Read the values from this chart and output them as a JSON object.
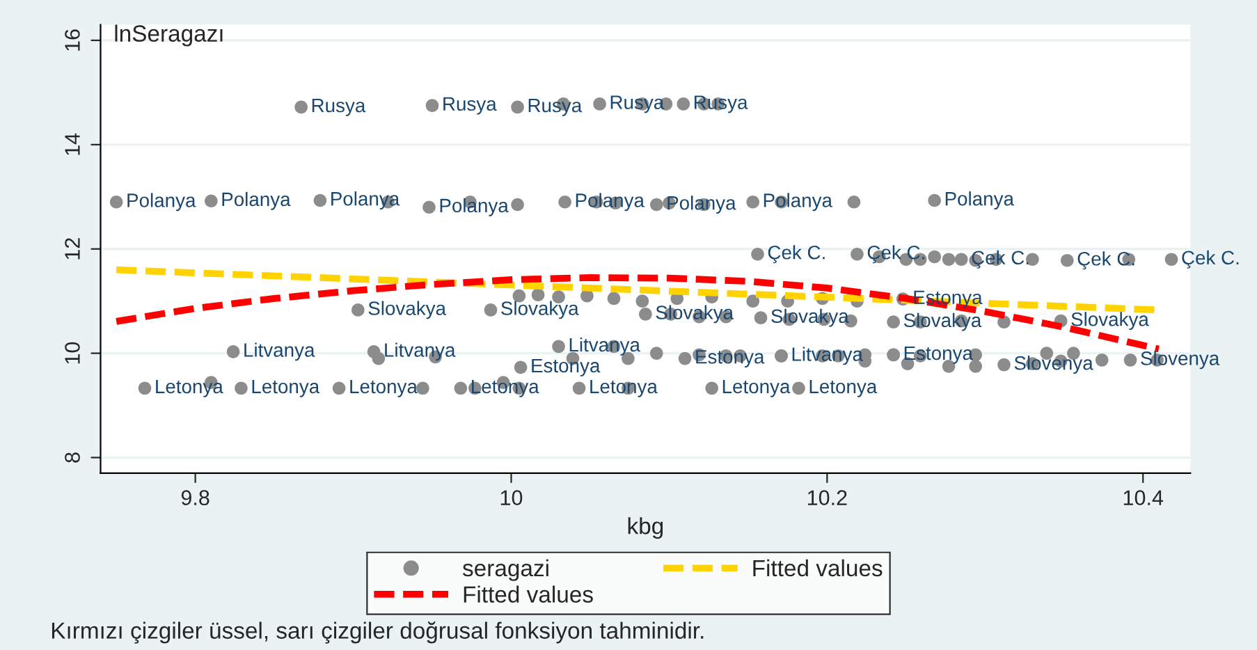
{
  "chart_data": {
    "type": "scatter",
    "ylabel": "lnSeragazı",
    "xlabel": "kbg",
    "xlim": [
      9.74,
      10.43
    ],
    "ylim": [
      7.7,
      16.3
    ],
    "xticks": [
      9.8,
      10,
      10.2,
      10.4
    ],
    "yticks": [
      8,
      10,
      12,
      14,
      16
    ],
    "grid": "y",
    "legend": "bottom",
    "marker": "circle",
    "annotations": [
      "Kırmızı çizgiler üssel, sarı çizgiler doğrusal fonksiyon tahminidir."
    ],
    "series": [
      {
        "name": "seragazi",
        "color": "#8c8c8c",
        "x": [
          9.867,
          9.95,
          10.004,
          10.033,
          10.056,
          10.083,
          10.098,
          10.109,
          10.122,
          10.131,
          9.75,
          9.81,
          9.879,
          9.922,
          9.948,
          9.974,
          10.004,
          10.034,
          10.054,
          10.066,
          10.092,
          10.1,
          10.122,
          10.153,
          10.171,
          10.217,
          10.268,
          10.156,
          10.219,
          10.233,
          10.25,
          10.259,
          10.268,
          10.277,
          10.285,
          10.294,
          10.307,
          10.33,
          10.352,
          10.391,
          10.418,
          10.005,
          10.017,
          10.03,
          10.048,
          10.065,
          10.083,
          10.105,
          10.127,
          10.153,
          10.175,
          10.197,
          10.219,
          10.248,
          9.903,
          9.987,
          10.085,
          10.101,
          10.119,
          10.136,
          10.158,
          10.176,
          10.198,
          10.215,
          10.242,
          10.259,
          10.285,
          10.312,
          10.348,
          9.824,
          9.913,
          9.916,
          9.952,
          10.03,
          10.065,
          10.092,
          10.119,
          10.145,
          10.171,
          10.197,
          10.224,
          10.242,
          10.259,
          10.006,
          10.039,
          10.074,
          10.11,
          10.136,
          10.171,
          10.207,
          10.242,
          10.294,
          10.339,
          10.356,
          10.224,
          10.251,
          10.277,
          10.294,
          10.312,
          10.33,
          10.348,
          10.374,
          10.392,
          10.409,
          9.768,
          9.81,
          9.829,
          9.891,
          9.944,
          9.968,
          9.977,
          9.995,
          10.005,
          10.043,
          10.074,
          10.127,
          10.182
        ],
        "values": [
          14.72,
          14.75,
          14.72,
          14.78,
          14.78,
          14.78,
          14.78,
          14.78,
          14.78,
          14.78,
          12.9,
          12.92,
          12.93,
          12.9,
          12.8,
          12.9,
          12.85,
          12.9,
          12.9,
          12.88,
          12.85,
          12.88,
          12.85,
          12.9,
          12.9,
          12.9,
          12.93,
          11.9,
          11.9,
          11.85,
          11.8,
          11.8,
          11.85,
          11.8,
          11.8,
          11.78,
          11.8,
          11.8,
          11.78,
          11.8,
          11.8,
          11.1,
          11.12,
          11.08,
          11.1,
          11.05,
          11.0,
          11.05,
          11.08,
          11.0,
          11.0,
          11.05,
          11.0,
          11.04,
          10.83,
          10.83,
          10.75,
          10.75,
          10.7,
          10.7,
          10.68,
          10.65,
          10.65,
          10.62,
          10.6,
          10.6,
          10.62,
          10.6,
          10.62,
          10.03,
          10.03,
          9.9,
          9.93,
          10.13,
          10.13,
          10.0,
          9.97,
          9.95,
          9.95,
          9.95,
          9.97,
          9.97,
          9.95,
          9.73,
          9.9,
          9.9,
          9.9,
          9.95,
          9.95,
          9.95,
          9.97,
          9.97,
          10.0,
          10.0,
          9.85,
          9.8,
          9.75,
          9.75,
          9.78,
          9.8,
          9.85,
          9.87,
          9.87,
          9.87,
          9.33,
          9.44,
          9.33,
          9.33,
          9.33,
          9.33,
          9.33,
          9.44,
          9.33,
          9.33,
          9.33,
          9.33,
          9.33
        ],
        "value_labels": [
          "Rusya",
          "Rusya",
          "Rusya",
          null,
          "Rusya",
          null,
          null,
          "Rusya",
          null,
          null,
          "Polanya",
          "Polanya",
          "Polanya",
          null,
          "Polanya",
          null,
          null,
          "Polanya",
          null,
          null,
          "Polanya",
          null,
          null,
          "Polanya",
          null,
          null,
          "Polanya",
          "Çek C.",
          "Çek C.",
          null,
          null,
          null,
          null,
          null,
          "Çek C.",
          null,
          null,
          null,
          "Çek C.",
          null,
          "Çek C.",
          null,
          null,
          null,
          null,
          null,
          null,
          null,
          null,
          null,
          null,
          null,
          null,
          "Estonya",
          "Slovakya",
          "Slovakya",
          "Slovakya",
          null,
          null,
          null,
          "Slovakya",
          null,
          null,
          null,
          "Slovakya",
          null,
          null,
          null,
          "Slovakya",
          "Litvanya",
          "Litvanya",
          null,
          null,
          "Litvanya",
          null,
          null,
          null,
          null,
          "Litvanya",
          null,
          null,
          null,
          null,
          "Estonya",
          null,
          null,
          "Estonya",
          null,
          null,
          null,
          "Estonya",
          null,
          null,
          null,
          null,
          null,
          null,
          null,
          "Slovenya",
          null,
          null,
          null,
          "Slovenya",
          null,
          "Letonya",
          null,
          "Letonya",
          "Letonya",
          null,
          "Letonya",
          null,
          null,
          null,
          "Letonya",
          null,
          "Letonya",
          "Letonya"
        ]
      },
      {
        "name": "Fitted values",
        "type": "line",
        "color": "#ffd200",
        "line_style": "dashed",
        "marker": "none",
        "x": [
          9.75,
          10.41
        ],
        "values": [
          11.6,
          10.83
        ]
      },
      {
        "name": "Fitted values",
        "type": "line",
        "color": "#ff0000",
        "line_style": "dashed",
        "marker": "none",
        "x": [
          9.75,
          9.8,
          9.85,
          9.9,
          9.95,
          10.0,
          10.05,
          10.1,
          10.15,
          10.2,
          10.25,
          10.3,
          10.35,
          10.41
        ],
        "values": [
          10.61,
          10.86,
          11.05,
          11.2,
          11.32,
          11.41,
          11.45,
          11.44,
          11.38,
          11.25,
          11.05,
          10.8,
          10.5,
          10.08
        ]
      }
    ]
  }
}
